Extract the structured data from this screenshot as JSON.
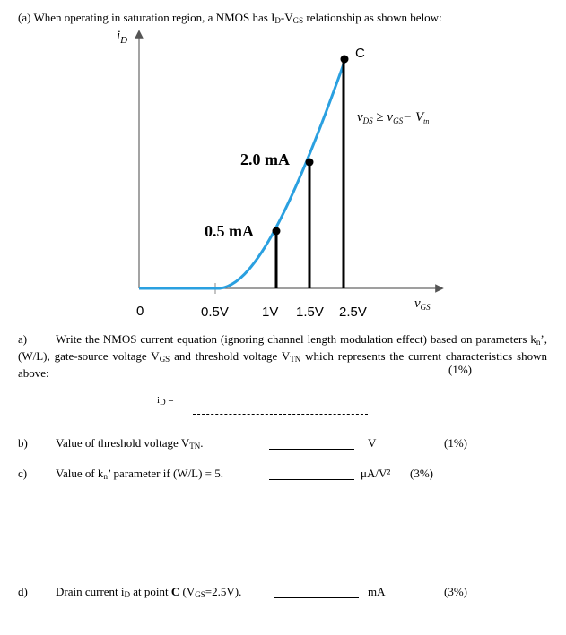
{
  "header": {
    "parts": [
      "(a) When operating in saturation region, a NMOS has I",
      "D",
      "-V",
      "GS",
      " relationship as shown below:"
    ]
  },
  "graph": {
    "y_axis": [
      "i",
      "D"
    ],
    "x_axis": [
      "v",
      "GS"
    ],
    "origin": "0",
    "x_ticks": [
      "0.5V",
      "1V",
      "1.5V",
      "2.5V"
    ],
    "point_labels": [
      "0.5 mA",
      "2.0 mA",
      "C"
    ],
    "annotation": [
      "v",
      "DS",
      " ≥ ",
      "v",
      "GS",
      "− V",
      "tn"
    ]
  },
  "questions": [
    {
      "label": "a)",
      "parts": [
        "Write the NMOS current equation (ignoring channel length modulation effect) based on parameters k",
        "n",
        "’, (W/L), gate-source voltage V",
        "GS",
        " and threshold voltage V",
        "TN",
        " which represents the current characteristics shown above:"
      ],
      "marks": "(1%)",
      "answer": [
        "i",
        "D",
        " ="
      ]
    },
    {
      "label": "b)",
      "parts": [
        "Value of threshold voltage V",
        "TN",
        "."
      ],
      "unit": "V",
      "marks": "(1%)"
    },
    {
      "label": "c)",
      "parts": [
        "Value of k",
        "n",
        "’ parameter if (W/L) = 5."
      ],
      "unit": "μA/V²",
      "marks": "(3%)"
    },
    {
      "label": "d)",
      "parts": [
        "Drain current i",
        "D",
        " at point ",
        "C",
        " (V",
        "GS",
        "=2.5V)."
      ],
      "unit": "mA",
      "marks": "(3%)"
    }
  ]
}
